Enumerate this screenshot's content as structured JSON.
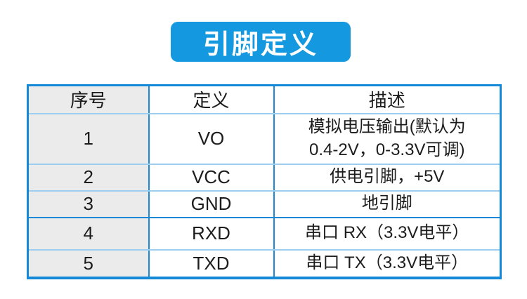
{
  "title_badge": {
    "label": "引脚定义",
    "bg_color": "#1499e0",
    "text_color": "#ffffff"
  },
  "pin_table": {
    "headers": {
      "no": "序号",
      "definition": "定义",
      "description": "描述"
    },
    "rows": [
      {
        "no": "1",
        "definition": "VO",
        "description": "模拟电压输出(默认为\n0.4-2V，0-3.3V可调)"
      },
      {
        "no": "2",
        "definition": "VCC",
        "description": "供电引脚，+5V"
      },
      {
        "no": "3",
        "definition": "GND",
        "description": "地引脚"
      },
      {
        "no": "4",
        "definition": "RXD",
        "description": "串口 RX（3.3V电平）"
      },
      {
        "no": "5",
        "definition": "TXD",
        "description": "串口 TX（3.3V电平）"
      }
    ],
    "colors": {
      "outer_border": "#1489d8",
      "vertical_border": "#1d88d8",
      "row_separator_light": "#9ecdf2",
      "row_separator_dark": "#1d88d8",
      "first_col_bg": "#ebebeb",
      "cell_bg": "#ffffff",
      "text_color": "#1c1c1c"
    }
  }
}
